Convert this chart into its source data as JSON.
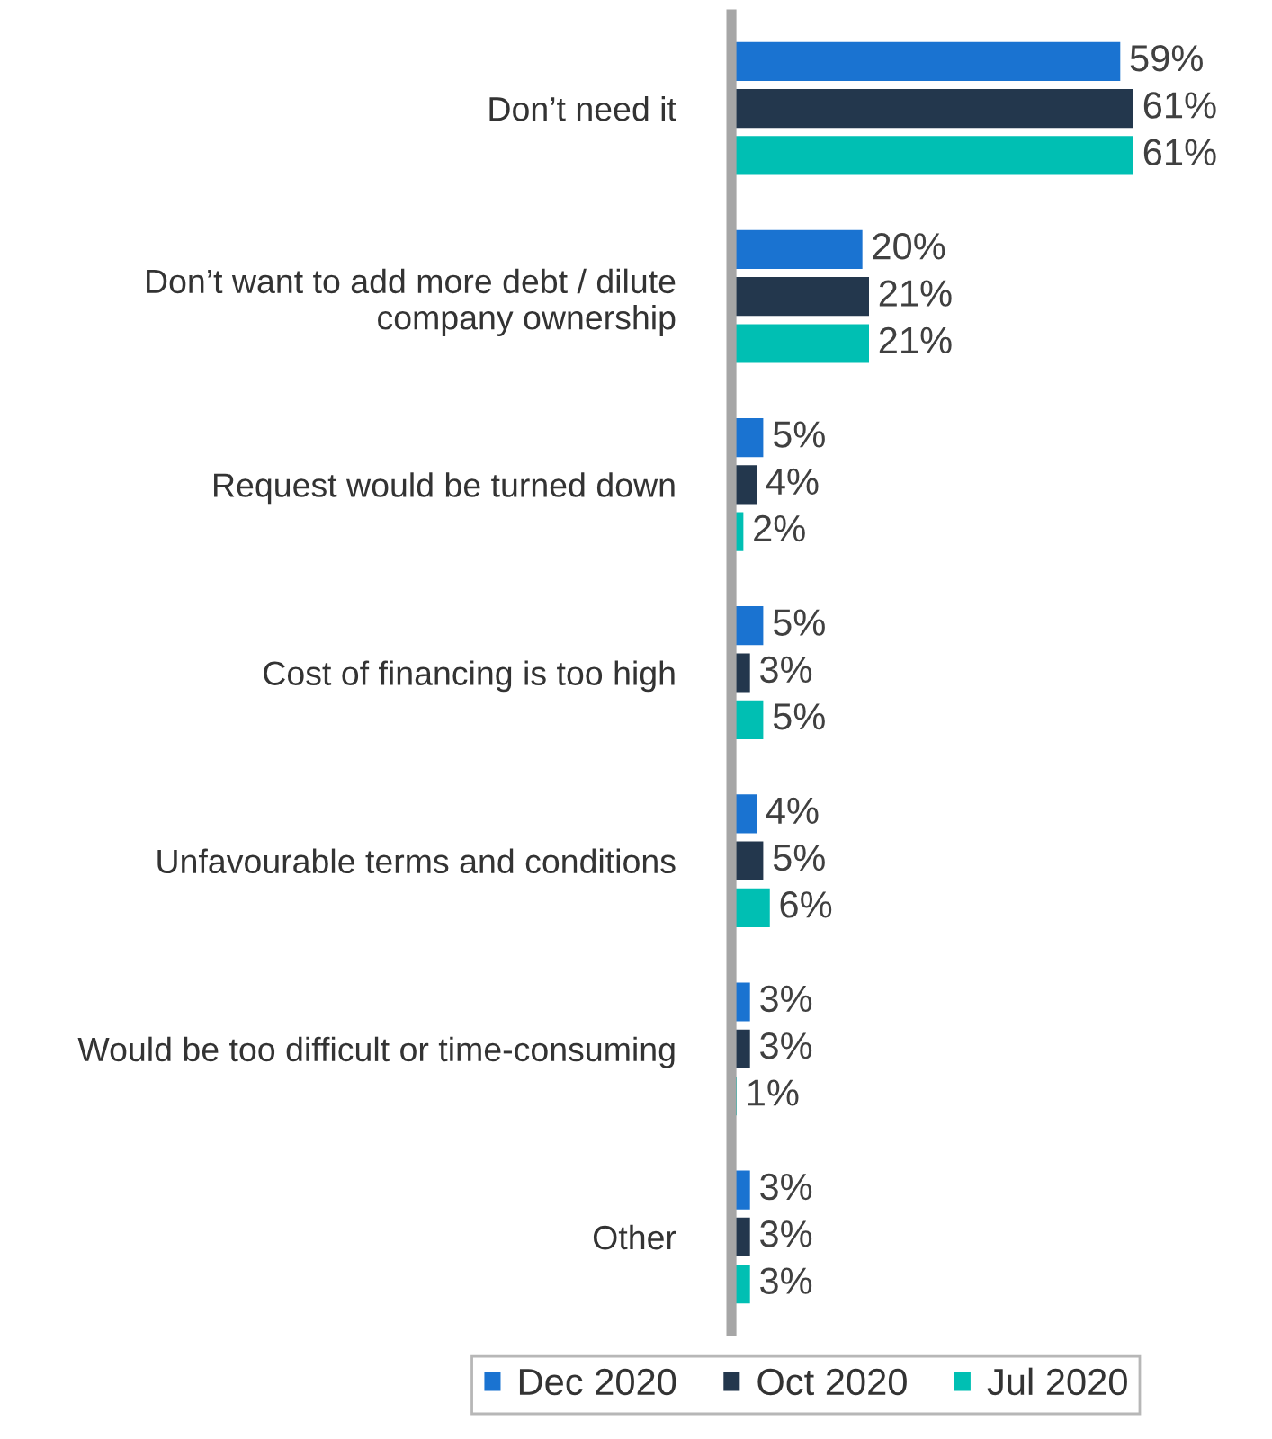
{
  "chart_data": {
    "type": "bar",
    "orientation": "horizontal",
    "categories": [
      "Don’t need it",
      "Don’t want to add more debt / dilute company ownership",
      "Request would be turned down",
      "Cost of financing is too high",
      "Unfavourable terms and conditions",
      "Would be too difficult or time-consuming",
      "Other"
    ],
    "series": [
      {
        "name": "Dec 2020",
        "color": "#1a73d1",
        "values": [
          59,
          20,
          5,
          5,
          4,
          3,
          3
        ],
        "value_labels": [
          "59%",
          "20%",
          "5%",
          "5%",
          "4%",
          "3%",
          "3%"
        ]
      },
      {
        "name": "Oct 2020",
        "color": "#23374d",
        "values": [
          61,
          21,
          4,
          3,
          5,
          3,
          3
        ],
        "value_labels": [
          "61%",
          "21%",
          "4%",
          "3%",
          "5%",
          "3%",
          "3%"
        ]
      },
      {
        "name": "Jul 2020",
        "color": "#00bfb3",
        "values": [
          61,
          21,
          2,
          5,
          6,
          1,
          3
        ],
        "value_labels": [
          "61%",
          "21%",
          "2%",
          "5%",
          "6%",
          "1%",
          "3%"
        ]
      }
    ],
    "legend": "bottom",
    "grid": false
  }
}
